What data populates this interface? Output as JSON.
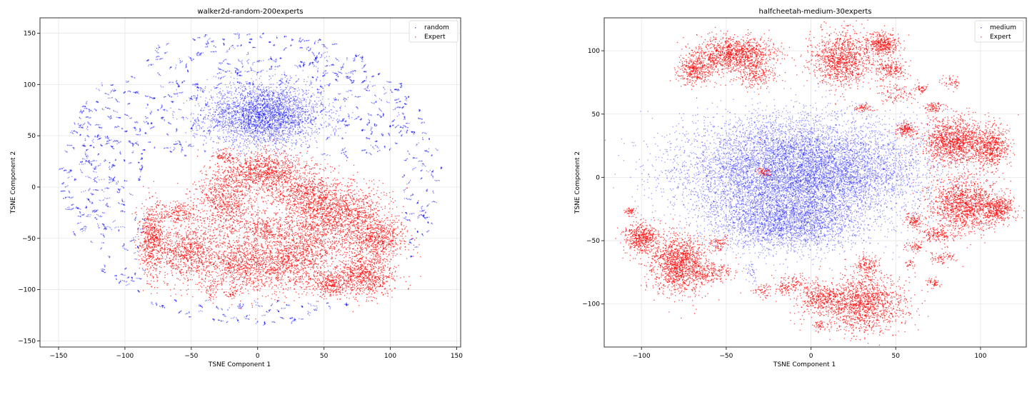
{
  "chart_data": [
    {
      "type": "scatter",
      "title": "walker2d-random-200experts",
      "xlabel": "TSNE Component 1",
      "ylabel": "TSNE Component 2",
      "xlim": [
        -164,
        153
      ],
      "ylim": [
        -156,
        165
      ],
      "xticks": [
        -150,
        -100,
        -50,
        0,
        50,
        100,
        150
      ],
      "yticks": [
        -150,
        -100,
        -50,
        0,
        50,
        100,
        150
      ],
      "grid": true,
      "legend_position": "top-right",
      "series": [
        {
          "name": "random",
          "color": "#0000ff",
          "opacity": 0.45,
          "clusters": [
            {
              "x": 5,
              "y": 70,
              "sx": 22,
              "sy": 15,
              "n": 3200
            },
            {
              "fragments": true,
              "cx": -5,
              "cy": 10,
              "r_min": 40,
              "r_max": 145,
              "n": 700,
              "exclude_lower_center": true
            }
          ]
        },
        {
          "name": "Expert",
          "color": "#ff0000",
          "opacity": 0.7,
          "clusters": [
            {
              "x": -80,
              "y": -50,
              "sx": 5,
              "sy": 18,
              "n": 600
            },
            {
              "x": -60,
              "y": -25,
              "sx": 8,
              "sy": 6,
              "n": 200
            },
            {
              "x": -55,
              "y": -65,
              "sx": 12,
              "sy": 14,
              "n": 800
            },
            {
              "x": -25,
              "y": -15,
              "sx": 12,
              "sy": 18,
              "n": 900
            },
            {
              "x": 5,
              "y": 15,
              "sx": 15,
              "sy": 10,
              "n": 900
            },
            {
              "x": 35,
              "y": -5,
              "sx": 15,
              "sy": 12,
              "n": 700
            },
            {
              "x": -10,
              "y": -75,
              "sx": 18,
              "sy": 14,
              "n": 1100
            },
            {
              "x": 30,
              "y": -70,
              "sx": 14,
              "sy": 16,
              "n": 900
            },
            {
              "x": 45,
              "y": -35,
              "sx": 12,
              "sy": 18,
              "n": 700
            },
            {
              "x": 70,
              "y": -25,
              "sx": 14,
              "sy": 14,
              "n": 800
            },
            {
              "x": 90,
              "y": -50,
              "sx": 12,
              "sy": 10,
              "n": 700
            },
            {
              "x": 80,
              "y": -85,
              "sx": 12,
              "sy": 11,
              "n": 800
            },
            {
              "x": 55,
              "y": -95,
              "sx": 8,
              "sy": 6,
              "n": 300
            },
            {
              "x": 5,
              "y": -40,
              "sx": 10,
              "sy": 8,
              "n": 300
            },
            {
              "x": -25,
              "y": 30,
              "sx": 4,
              "sy": 3,
              "n": 80
            },
            {
              "x": -35,
              "y": -100,
              "sx": 2,
              "sy": 4,
              "n": 40
            },
            {
              "x": -20,
              "y": -105,
              "sx": 3,
              "sy": 2,
              "n": 30
            }
          ]
        }
      ]
    },
    {
      "type": "scatter",
      "title": "halfcheetah-medium-30experts",
      "xlabel": "TSNE Component 1",
      "ylabel": "TSNE Component 2",
      "xlim": [
        -122,
        127
      ],
      "ylim": [
        -134,
        126
      ],
      "xticks": [
        -100,
        -50,
        0,
        50,
        100
      ],
      "yticks": [
        -100,
        -50,
        0,
        50,
        100
      ],
      "grid": true,
      "legend_position": "top-right",
      "series": [
        {
          "name": "medium",
          "color": "#0000ff",
          "opacity": 0.4,
          "clusters": [
            {
              "x": -5,
              "y": 5,
              "sx": 36,
              "sy": 21,
              "n": 9000
            },
            {
              "x": -15,
              "y": -35,
              "sx": 22,
              "sy": 12,
              "n": 2500
            },
            {
              "x": -35,
              "y": -75,
              "sx": 2,
              "sy": 5,
              "n": 40
            }
          ]
        },
        {
          "name": "Expert",
          "color": "#ff0000",
          "opacity": 0.7,
          "clusters": [
            {
              "x": -45,
              "y": 97,
              "sx": 12,
              "sy": 7,
              "n": 1200
            },
            {
              "x": -68,
              "y": 85,
              "sx": 6,
              "sy": 6,
              "n": 400
            },
            {
              "x": -33,
              "y": 80,
              "sx": 6,
              "sy": 5,
              "n": 200
            },
            {
              "x": 18,
              "y": 93,
              "sx": 9,
              "sy": 11,
              "n": 1100
            },
            {
              "x": 42,
              "y": 105,
              "sx": 5,
              "sy": 5,
              "n": 400
            },
            {
              "x": 47,
              "y": 85,
              "sx": 5,
              "sy": 4,
              "n": 200
            },
            {
              "x": 85,
              "y": 28,
              "sx": 10,
              "sy": 9,
              "n": 1300
            },
            {
              "x": 107,
              "y": 23,
              "sx": 5,
              "sy": 9,
              "n": 500
            },
            {
              "x": 90,
              "y": -22,
              "sx": 10,
              "sy": 11,
              "n": 1300
            },
            {
              "x": 110,
              "y": -25,
              "sx": 5,
              "sy": 5,
              "n": 400
            },
            {
              "x": 75,
              "y": -45,
              "sx": 5,
              "sy": 3,
              "n": 150
            },
            {
              "x": -100,
              "y": -48,
              "sx": 5,
              "sy": 6,
              "n": 500
            },
            {
              "x": -78,
              "y": -68,
              "sx": 8,
              "sy": 12,
              "n": 1300
            },
            {
              "x": -60,
              "y": -75,
              "sx": 8,
              "sy": 4,
              "n": 250
            },
            {
              "x": 30,
              "y": -100,
              "sx": 14,
              "sy": 11,
              "n": 1500
            },
            {
              "x": 5,
              "y": -95,
              "sx": 6,
              "sy": 5,
              "n": 300
            },
            {
              "x": 33,
              "y": -70,
              "sx": 4,
              "sy": 4,
              "n": 150
            },
            {
              "x": -107,
              "y": -27,
              "sx": 1.5,
              "sy": 1.5,
              "n": 50
            },
            {
              "x": 56,
              "y": 38,
              "sx": 3,
              "sy": 3,
              "n": 150
            },
            {
              "x": -28,
              "y": 4,
              "sx": 2,
              "sy": 2,
              "n": 60
            },
            {
              "x": 72,
              "y": 55,
              "sx": 3,
              "sy": 2,
              "n": 80
            },
            {
              "x": 60,
              "y": -35,
              "sx": 3,
              "sy": 3,
              "n": 100
            },
            {
              "x": 62,
              "y": -55,
              "sx": 3,
              "sy": 2,
              "n": 60
            },
            {
              "x": 78,
              "y": -63,
              "sx": 4,
              "sy": 3,
              "n": 80
            },
            {
              "x": -55,
              "y": -52,
              "sx": 3,
              "sy": 3,
              "n": 80
            },
            {
              "x": -28,
              "y": -90,
              "sx": 3,
              "sy": 3,
              "n": 60
            },
            {
              "x": -15,
              "y": -88,
              "sx": 3,
              "sy": 2,
              "n": 50
            },
            {
              "x": -10,
              "y": -83,
              "sx": 5,
              "sy": 3,
              "n": 100
            },
            {
              "x": 30,
              "y": 55,
              "sx": 3,
              "sy": 2,
              "n": 60
            },
            {
              "x": 50,
              "y": 65,
              "sx": 6,
              "sy": 4,
              "n": 100
            },
            {
              "x": 65,
              "y": 70,
              "sx": 2,
              "sy": 2,
              "n": 50
            },
            {
              "x": 82,
              "y": 75,
              "sx": 3,
              "sy": 3,
              "n": 50
            },
            {
              "x": 72,
              "y": -84,
              "sx": 2,
              "sy": 2,
              "n": 50
            },
            {
              "x": 5,
              "y": -117,
              "sx": 2,
              "sy": 1.5,
              "n": 40
            },
            {
              "x": 58,
              "y": -68,
              "sx": 1.5,
              "sy": 2,
              "n": 30
            },
            {
              "x": -30,
              "y": 30,
              "sx": 0.1,
              "sy": 0.1,
              "n": 1
            }
          ]
        }
      ]
    }
  ]
}
